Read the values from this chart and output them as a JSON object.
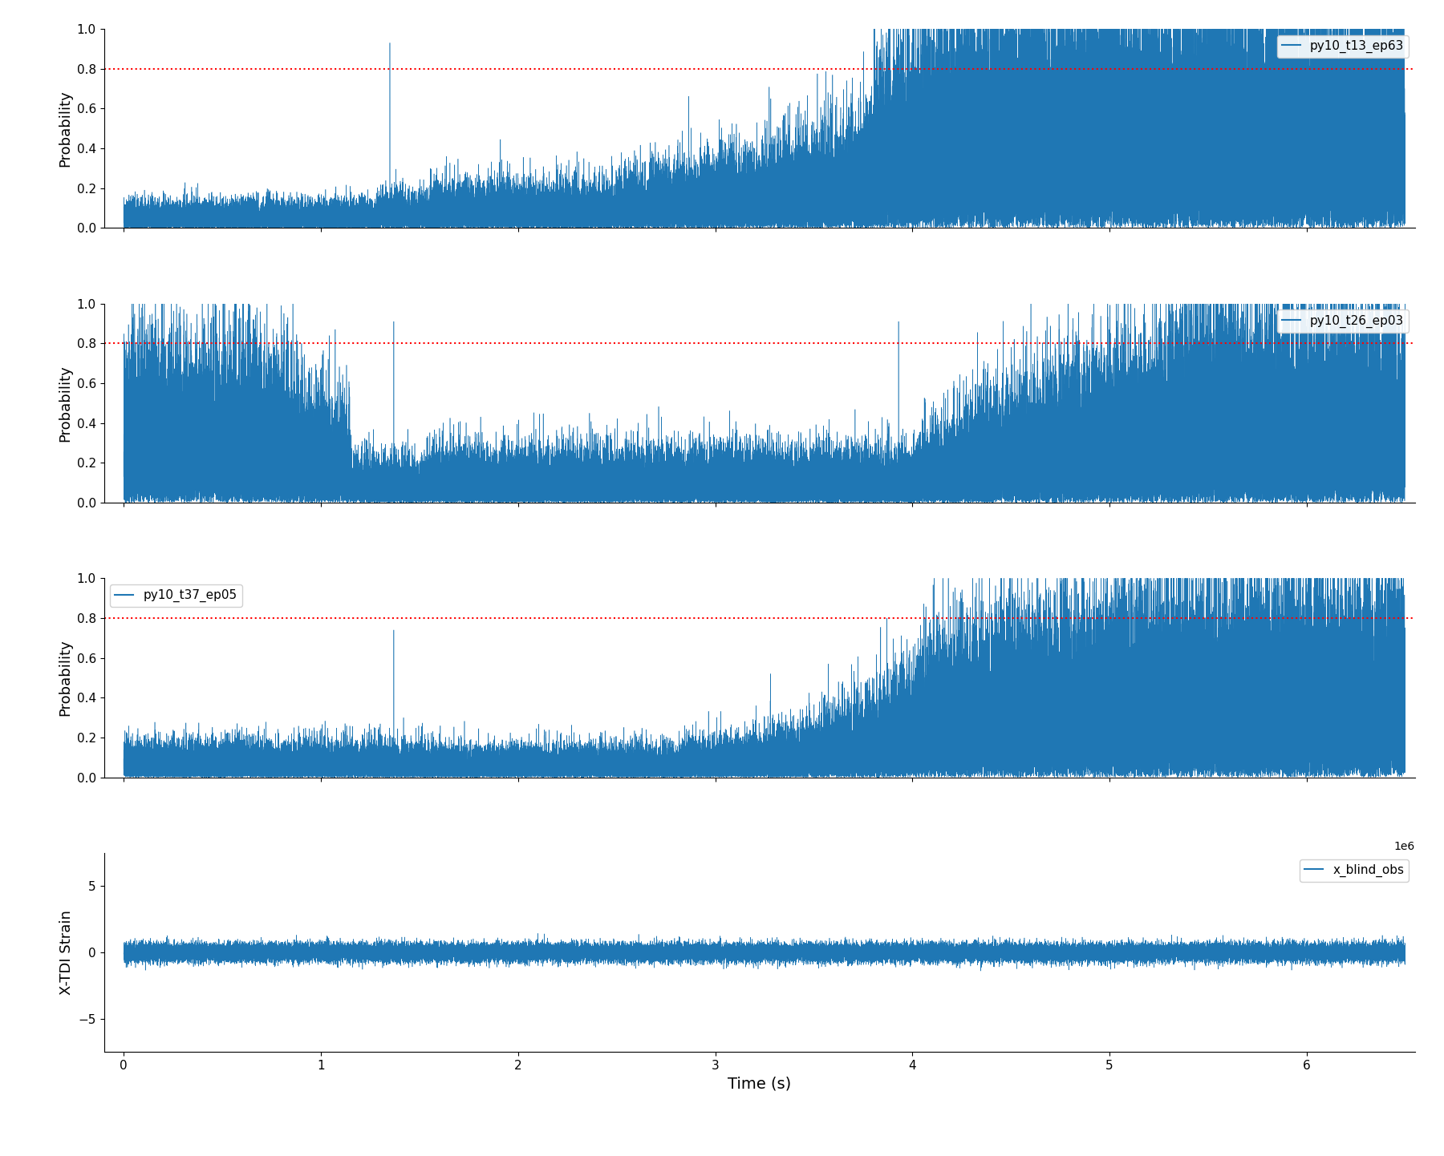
{
  "title": "",
  "xlabel": "Time (s)",
  "subplots": [
    {
      "label": "py10_t13_ep63",
      "ylabel": "Probability",
      "ylim": [
        0.0,
        1.0
      ],
      "yticks": [
        0.0,
        0.2,
        0.4,
        0.6,
        0.8,
        1.0
      ],
      "threshold": 0.8,
      "legend_loc": "upper right"
    },
    {
      "label": "py10_t26_ep03",
      "ylabel": "Probability",
      "ylim": [
        0.0,
        1.0
      ],
      "yticks": [
        0.0,
        0.2,
        0.4,
        0.6,
        0.8,
        1.0
      ],
      "threshold": 0.8,
      "legend_loc": "upper right"
    },
    {
      "label": "py10_t37_ep05",
      "ylabel": "Probability",
      "ylim": [
        0.0,
        1.0
      ],
      "yticks": [
        0.0,
        0.2,
        0.4,
        0.6,
        0.8,
        1.0
      ],
      "threshold": 0.8,
      "legend_loc": "upper left"
    },
    {
      "label": "x_blind_obs",
      "ylabel": "X-TDI Strain",
      "ylim": [
        -7.5,
        7.5
      ],
      "yticks": [
        -5,
        0,
        5
      ],
      "threshold": null,
      "legend_loc": "upper right",
      "scale_label": "1e6"
    }
  ],
  "xlim": [
    -0.1,
    6.55
  ],
  "xticks": [
    0,
    1,
    2,
    3,
    4,
    5,
    6
  ],
  "line_color": "#1f77b4",
  "threshold_color": "red",
  "threshold_linestyle": "dotted",
  "n_points": 65000,
  "x_max": 6.5,
  "strain_amplitude": 350000.0,
  "strain_scale": 1000000.0
}
